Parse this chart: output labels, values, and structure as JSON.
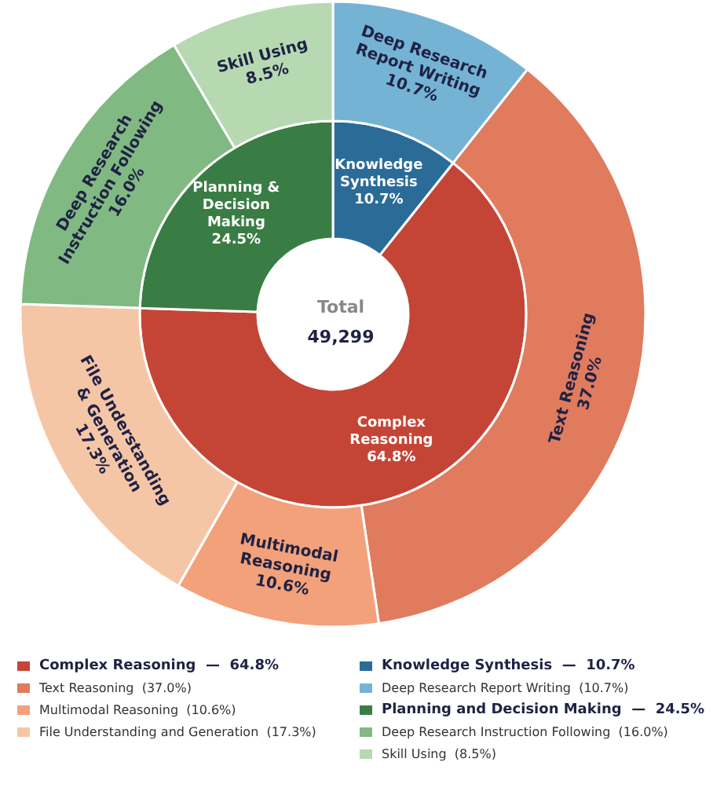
{
  "chart_data": {
    "type": "donut",
    "title": "Total",
    "subtitle": "49,299",
    "legend": "bottom",
    "categories": [
      "Knowledge Synthesis  —  10.7%",
      "Complex Reasoning  —  64.8%",
      "Planning and Decision Making  —  24.5%",
      "Deep Research Report Writing  (10.7%)",
      "Text Reasoning  (37.0%)",
      "Multimodal Reasoning  (10.6%)",
      "File Understanding and Generation  (17.3%)",
      "Deep Research Instruction Following  (16.0%)",
      "Skill Using  (8.5%)"
    ],
    "colors": [
      "#2b6b97",
      "#c44536",
      "#3a7d44",
      "#75b3d4",
      "#e07b5e",
      "#f3a17b",
      "#f5c6a6",
      "#80b982",
      "#b6d9b2"
    ],
    "series": [
      {
        "values": [
          10.7,
          64.8,
          24.5,
          null,
          null,
          null,
          null,
          null,
          null
        ],
        "value_labels": [
          "Knowledge\nSynthesis\n10.7%",
          "Complex\nReasoning\n64.8%",
          "Planning &\nDecision\nMaking\n24.5%",
          null,
          null,
          null,
          null,
          null,
          null
        ]
      },
      {
        "values": [
          null,
          null,
          null,
          10.7,
          37.0,
          10.6,
          17.3,
          16.0,
          8.5
        ],
        "value_labels": [
          null,
          null,
          null,
          "Deep Research\nReport Writing\n10.7%",
          "Text Reasoning\n37.0%",
          "Multimodal\nReasoning\n10.6%",
          "File Understanding\n& Generation\n17.3%",
          "Deep Research\nInstruction Following\n16.0%",
          "Skill Using\n8.5%"
        ]
      }
    ]
  }
}
